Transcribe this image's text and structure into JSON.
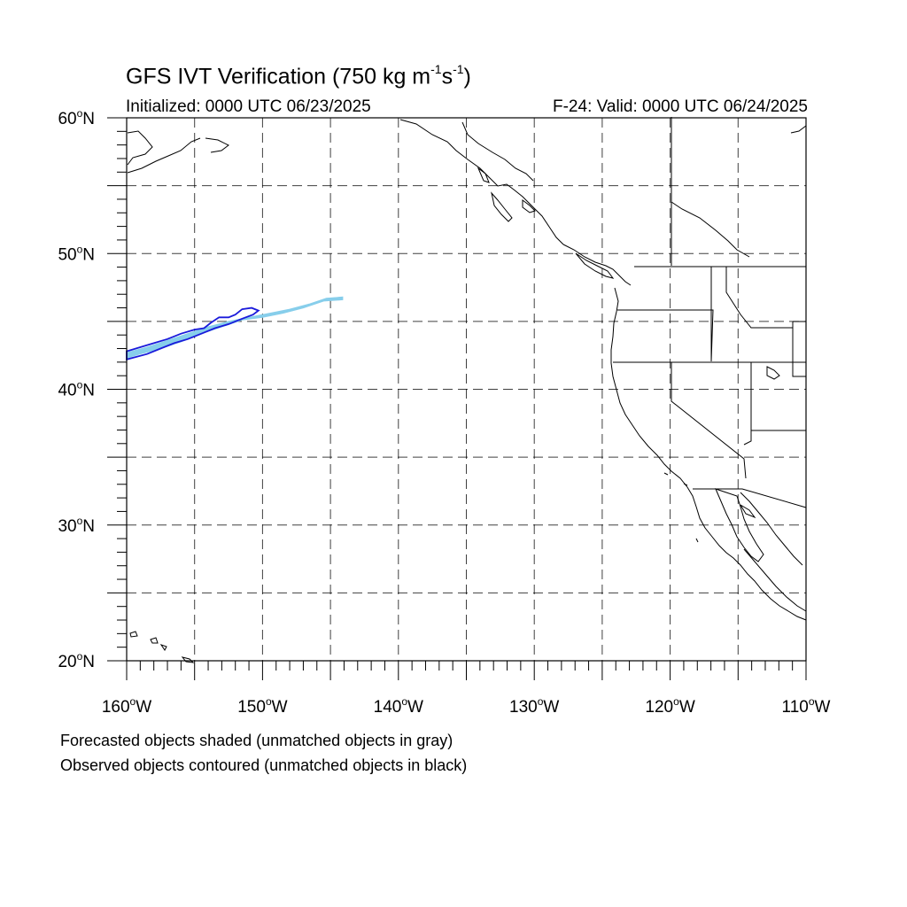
{
  "title": {
    "main": "GFS IVT Verification (750 kg m",
    "exp1": "-1",
    "mid": "s",
    "exp2": "-1",
    "close": ")"
  },
  "subtitle": {
    "left": "Initialized: 0000 UTC 06/23/2025",
    "right": "F-24: Valid: 0000 UTC 06/24/2025"
  },
  "captions": [
    "Forecasted objects shaded (unmatched objects in gray)",
    "Observed objects contoured (unmatched objects in black)"
  ],
  "map": {
    "projection": "cylindrical equidistant",
    "lon_range": [
      -160,
      -110
    ],
    "lat_range": [
      20,
      60
    ],
    "grid_lines": "dashed, every 5 degrees",
    "lon_labels": [
      {
        "lon": -160,
        "num": "160",
        "hemi": "W"
      },
      {
        "lon": -150,
        "num": "150",
        "hemi": "W"
      },
      {
        "lon": -140,
        "num": "140",
        "hemi": "W"
      },
      {
        "lon": -130,
        "num": "130",
        "hemi": "W"
      },
      {
        "lon": -120,
        "num": "120",
        "hemi": "W"
      },
      {
        "lon": -110,
        "num": "110",
        "hemi": "W"
      }
    ],
    "lat_labels": [
      {
        "lat": 60,
        "num": "60",
        "hemi": "N"
      },
      {
        "lat": 50,
        "num": "50",
        "hemi": "N"
      },
      {
        "lat": 40,
        "num": "40",
        "hemi": "N"
      },
      {
        "lat": 30,
        "num": "30",
        "hemi": "N"
      },
      {
        "lat": 20,
        "num": "20",
        "hemi": "N"
      }
    ],
    "colors": {
      "forecast_fill": "#87ceeb",
      "observed_contour": "#1a1adb",
      "coastline": "#000000",
      "grid": "#000000"
    },
    "forecast_object": {
      "label": "matched forecast object",
      "outline_lonlat": [
        [
          -160.0,
          42.7
        ],
        [
          -158.5,
          43.1
        ],
        [
          -157.0,
          43.6
        ],
        [
          -155.5,
          44.1
        ],
        [
          -154.0,
          44.6
        ],
        [
          -152.5,
          45.0
        ],
        [
          -151.0,
          45.3
        ],
        [
          -149.5,
          45.6
        ],
        [
          -148.0,
          45.9
        ],
        [
          -146.5,
          46.3
        ],
        [
          -145.3,
          46.7
        ],
        [
          -144.1,
          46.8
        ],
        [
          -144.1,
          46.6
        ],
        [
          -145.5,
          46.5
        ],
        [
          -147.0,
          46.0
        ],
        [
          -148.5,
          45.6
        ],
        [
          -150.0,
          45.3
        ],
        [
          -151.5,
          45.1
        ],
        [
          -153.0,
          44.6
        ],
        [
          -154.5,
          44.1
        ],
        [
          -156.0,
          43.5
        ],
        [
          -157.5,
          43.0
        ],
        [
          -159.0,
          42.6
        ],
        [
          -160.0,
          42.3
        ]
      ]
    },
    "observed_object": {
      "label": "matched observed object",
      "outline_lonlat": [
        [
          -160.0,
          42.8
        ],
        [
          -159.0,
          43.1
        ],
        [
          -158.0,
          43.4
        ],
        [
          -157.0,
          43.7
        ],
        [
          -156.0,
          44.1
        ],
        [
          -155.0,
          44.4
        ],
        [
          -154.3,
          44.5
        ],
        [
          -153.8,
          44.9
        ],
        [
          -153.2,
          45.3
        ],
        [
          -152.5,
          45.3
        ],
        [
          -152.0,
          45.5
        ],
        [
          -151.5,
          45.9
        ],
        [
          -150.8,
          46.0
        ],
        [
          -150.3,
          45.8
        ],
        [
          -150.7,
          45.5
        ],
        [
          -151.5,
          45.2
        ],
        [
          -152.5,
          44.8
        ],
        [
          -153.5,
          44.5
        ],
        [
          -154.5,
          44.1
        ],
        [
          -155.5,
          43.7
        ],
        [
          -156.5,
          43.4
        ],
        [
          -157.5,
          43.0
        ],
        [
          -158.5,
          42.6
        ],
        [
          -160.0,
          42.2
        ]
      ]
    }
  }
}
